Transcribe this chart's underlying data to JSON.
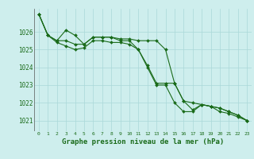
{
  "background_color": "#ceeeed",
  "grid_color": "#aad8d8",
  "line_color": "#1a6b1a",
  "ylabel_values": [
    1021,
    1022,
    1023,
    1024,
    1025,
    1026
  ],
  "xlim": [
    -0.5,
    23.5
  ],
  "ylim": [
    1020.4,
    1027.3
  ],
  "xlabel": "Graphe pression niveau de la mer (hPa)",
  "xlabel_fontsize": 6.5,
  "xtick_labels": [
    "0",
    "1",
    "2",
    "3",
    "4",
    "5",
    "6",
    "7",
    "8",
    "9",
    "10",
    "11",
    "12",
    "13",
    "14",
    "15",
    "16",
    "17",
    "18",
    "19",
    "20",
    "21",
    "22",
    "23"
  ],
  "series1": [
    1027.0,
    1025.8,
    1025.5,
    1026.1,
    1025.8,
    1025.3,
    1025.7,
    1025.7,
    1025.7,
    1025.6,
    1025.6,
    1025.5,
    1025.5,
    1025.5,
    1025.0,
    1023.1,
    1022.1,
    1021.6,
    1021.9,
    1021.8,
    1021.5,
    1021.4,
    1021.2,
    1021.0
  ],
  "series2": [
    1027.0,
    1025.8,
    1025.5,
    1025.5,
    1025.3,
    1025.3,
    1025.7,
    1025.7,
    1025.7,
    1025.5,
    1025.5,
    1025.0,
    1024.1,
    1023.1,
    1023.1,
    1023.1,
    1022.1,
    1022.0,
    1021.9,
    1021.8,
    1021.7,
    1021.5,
    1021.3,
    1021.0
  ],
  "series3": [
    1027.0,
    1025.8,
    1025.4,
    1025.2,
    1025.0,
    1025.1,
    1025.5,
    1025.5,
    1025.4,
    1025.4,
    1025.3,
    1025.0,
    1024.0,
    1023.0,
    1023.0,
    1022.0,
    1021.5,
    1021.5,
    1021.9,
    1021.8,
    1021.7,
    1021.5,
    1021.3,
    1021.0
  ]
}
